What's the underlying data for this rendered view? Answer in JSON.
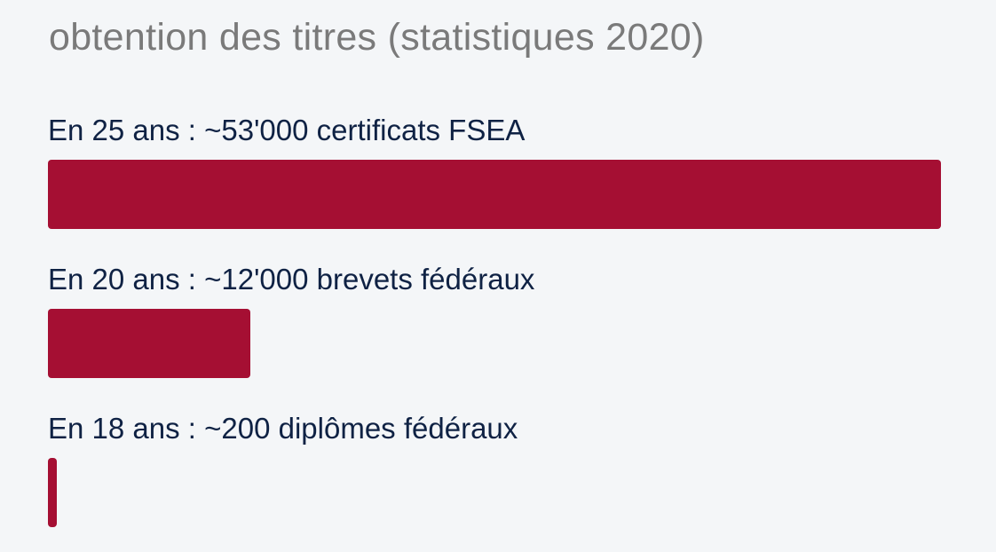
{
  "chart_data": {
    "type": "bar",
    "orientation": "horizontal",
    "title": "obtention des titres (statistiques 2020)",
    "categories": [
      "En 25 ans : ~53'000 certificats FSEA",
      "En 20 ans : ~12'000 brevets fédéraux",
      "En 18 ans : ~200 diplômes fédéraux"
    ],
    "values": [
      53000,
      12000,
      200
    ],
    "bar_color": "#a50f33",
    "xlim": [
      0,
      53000
    ],
    "grid": false,
    "legend": "none"
  }
}
